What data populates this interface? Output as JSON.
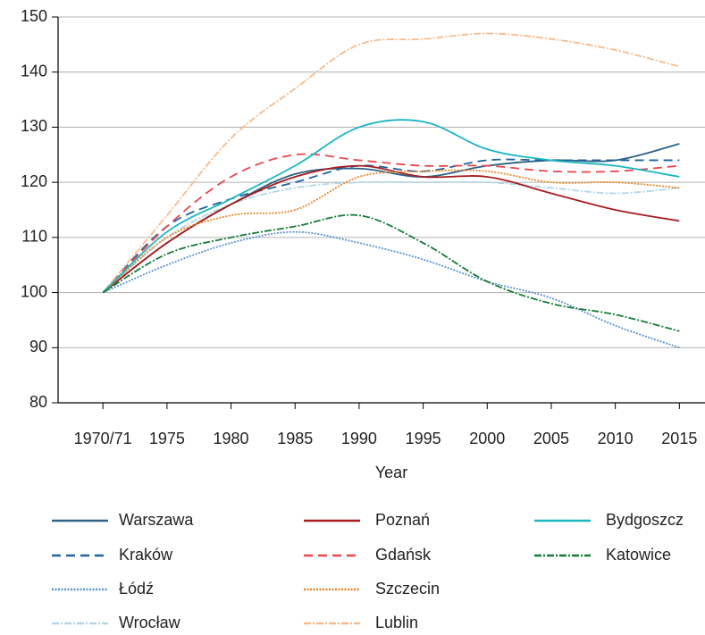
{
  "chart_data": {
    "type": "line",
    "x_label": "Year",
    "x": [
      1970,
      1975,
      1980,
      1985,
      1990,
      1995,
      2000,
      2005,
      2010,
      2015
    ],
    "xlim": [
      1966.5,
      2017
    ],
    "xticks": [
      {
        "value": 1970,
        "label": "1970/71"
      },
      1975,
      1980,
      1985,
      1990,
      1995,
      2000,
      2005,
      2010,
      2015
    ],
    "ylim": [
      80,
      150
    ],
    "yticks": [
      80,
      90,
      100,
      110,
      120,
      130,
      140,
      150
    ],
    "grid": true,
    "series": [
      {
        "name": "Warszawa",
        "color": "#2f6284",
        "linestyle": "solid",
        "values": [
          100,
          109,
          116,
          121.5,
          122.5,
          121,
          123,
          124,
          124,
          127
        ]
      },
      {
        "name": "Kraków",
        "color": "#1f63a0",
        "linestyle": "dashed",
        "values": [
          100,
          112,
          117,
          120,
          123,
          122,
          124,
          124,
          124,
          124
        ]
      },
      {
        "name": "Łódź",
        "color": "#5b95cf",
        "linestyle": "dotted",
        "values": [
          100,
          105,
          109,
          111,
          109,
          106,
          102,
          99,
          94,
          90
        ]
      },
      {
        "name": "Wrocław",
        "color": "#b3d6ea",
        "linestyle": "dashdot",
        "values": [
          100,
          110,
          116,
          119,
          120,
          120,
          120,
          119,
          118,
          119
        ]
      },
      {
        "name": "Poznań",
        "color": "#a61c1f",
        "linestyle": "solid",
        "values": [
          100,
          109,
          116,
          121,
          123,
          121,
          121,
          118,
          115,
          113
        ]
      },
      {
        "name": "Gdańsk",
        "color": "#e8484e",
        "linestyle": "dashed",
        "values": [
          100,
          112,
          121,
          125,
          124,
          123,
          123,
          122,
          122,
          123
        ]
      },
      {
        "name": "Szczecin",
        "color": "#e8872a",
        "linestyle": "dotted",
        "values": [
          100,
          110,
          114,
          115,
          121,
          122,
          122,
          120,
          120,
          119
        ]
      },
      {
        "name": "Lublin",
        "color": "#f8bb8c",
        "linestyle": "dashdot",
        "values": [
          100,
          114,
          128,
          137,
          145,
          146,
          147,
          146,
          144,
          141
        ]
      },
      {
        "name": "Bydgoszcz",
        "color": "#1bb5bf",
        "linestyle": "solid",
        "values": [
          100,
          111,
          117,
          123,
          130,
          131,
          126,
          124,
          123,
          121
        ]
      },
      {
        "name": "Katowice",
        "color": "#177a38",
        "linestyle": "dashdot",
        "values": [
          100,
          107,
          110,
          112,
          114,
          109,
          102,
          98,
          96,
          93
        ]
      }
    ]
  }
}
